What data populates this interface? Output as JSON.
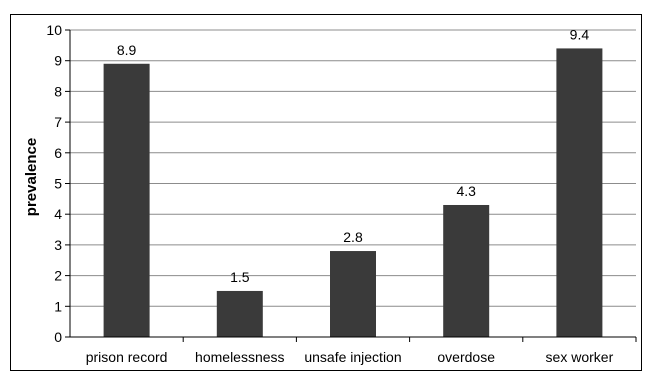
{
  "chart_data": {
    "type": "bar",
    "categories": [
      "prison record",
      "homelessness",
      "unsafe injection",
      "overdose",
      "sex worker"
    ],
    "values": [
      8.9,
      1.5,
      2.8,
      4.3,
      9.4
    ],
    "data_labels": [
      "8.9",
      "1.5",
      "2.8",
      "4.3",
      "9.4"
    ],
    "title": "",
    "xlabel": "",
    "ylabel": "prevalence",
    "ylim": [
      0,
      10
    ],
    "yticks": [
      0,
      1,
      2,
      3,
      4,
      5,
      6,
      7,
      8,
      9,
      10
    ],
    "grid": "horizontal",
    "legend": "none",
    "bar_color": "#3a3a3a",
    "grid_color": "#8c8c8c"
  }
}
